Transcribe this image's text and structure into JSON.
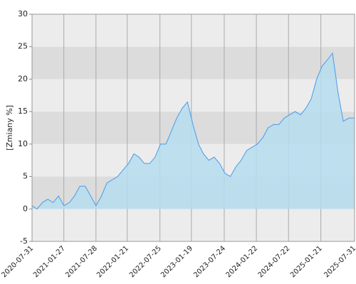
{
  "chart_data": {
    "type": "area",
    "ylabel": "[Zmiany %]",
    "x": [
      "2020-07-31",
      "2020-08-28",
      "2020-09-28",
      "2020-10-28",
      "2020-11-28",
      "2020-12-28",
      "2021-01-28",
      "2021-02-28",
      "2021-03-28",
      "2021-04-28",
      "2021-05-28",
      "2021-06-28",
      "2021-07-28",
      "2021-08-28",
      "2021-09-28",
      "2021-10-28",
      "2021-11-28",
      "2021-12-28",
      "2022-01-28",
      "2022-02-28",
      "2022-03-28",
      "2022-04-28",
      "2022-05-28",
      "2022-06-28",
      "2022-07-28",
      "2022-08-28",
      "2022-09-28",
      "2022-10-28",
      "2022-11-28",
      "2022-12-28",
      "2023-01-28",
      "2023-02-28",
      "2023-03-28",
      "2023-04-28",
      "2023-05-28",
      "2023-06-28",
      "2023-07-28",
      "2023-08-28",
      "2023-09-28",
      "2023-10-28",
      "2023-11-28",
      "2023-12-28",
      "2024-01-28",
      "2024-02-28",
      "2024-03-28",
      "2024-04-28",
      "2024-05-28",
      "2024-06-28",
      "2024-07-28",
      "2024-08-28",
      "2024-09-28",
      "2024-10-28",
      "2024-11-28",
      "2024-12-28",
      "2025-01-28",
      "2025-02-28",
      "2025-03-28",
      "2025-04-28",
      "2025-05-28",
      "2025-06-28",
      "2025-07-31"
    ],
    "values": [
      0.5,
      0,
      1,
      1.5,
      1,
      2,
      0.5,
      1,
      2,
      3.5,
      3.5,
      2,
      0.5,
      2,
      4,
      4.5,
      5,
      6,
      7,
      8.5,
      8,
      7,
      7,
      8,
      10,
      10,
      12,
      14,
      15.5,
      16.5,
      13,
      10,
      8.5,
      7.5,
      8,
      7,
      5.5,
      5,
      6.5,
      7.5,
      9,
      9.5,
      10,
      11,
      12.5,
      13,
      13,
      14,
      14.5,
      15,
      14.5,
      15.5,
      17,
      20,
      22,
      23,
      24,
      18,
      13.5,
      14,
      14
    ],
    "line_color": "#4a9be8",
    "fill_color": "#b5ddef",
    "xlim": [
      "2020-07-31",
      "2025-07-31"
    ],
    "xticks": [
      "2020-07-31",
      "2021-01-27",
      "2021-07-28",
      "2022-01-21",
      "2022-07-25",
      "2023-01-19",
      "2023-07-24",
      "2024-01-22",
      "2024-07-22",
      "2025-01-21",
      "2025-07-31"
    ],
    "ylim": [
      -5,
      30
    ],
    "yticks": [
      -5,
      0,
      5,
      10,
      15,
      20,
      25,
      30
    ],
    "grid": true
  }
}
